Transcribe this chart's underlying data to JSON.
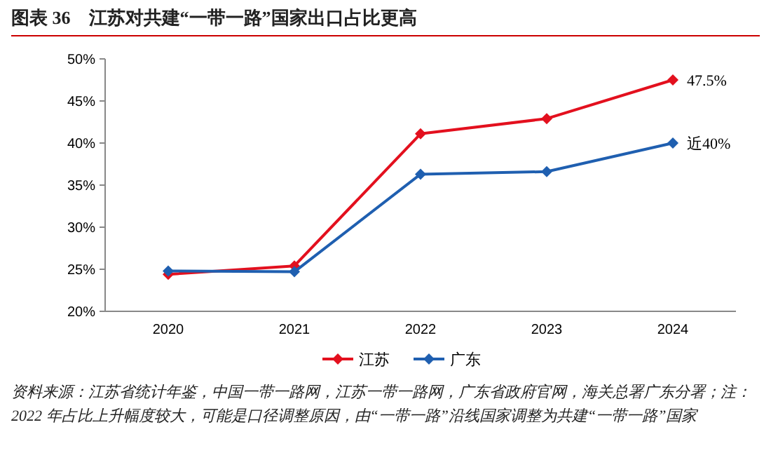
{
  "chart_data": {
    "type": "line",
    "title": "图表 36　江苏对共建“一带一路”国家出口占比更高",
    "categories": [
      "2020",
      "2021",
      "2022",
      "2023",
      "2024"
    ],
    "series": [
      {
        "name": "江苏",
        "color": "#e3101e",
        "values": [
          24.4,
          25.4,
          41.1,
          42.9,
          47.5
        ],
        "value_labels": [
          null,
          null,
          null,
          null,
          "47.5%"
        ]
      },
      {
        "name": "广东",
        "color": "#1f5fb0",
        "values": [
          24.8,
          24.7,
          36.3,
          36.6,
          40.0
        ],
        "value_labels": [
          null,
          null,
          null,
          null,
          "近40%"
        ]
      }
    ],
    "ylim": [
      20,
      50
    ],
    "yticks": [
      {
        "value": 20,
        "label": "20%"
      },
      {
        "value": 25,
        "label": "25%"
      },
      {
        "value": 30,
        "label": "30%"
      },
      {
        "value": 35,
        "label": "35%"
      },
      {
        "value": 40,
        "label": "40%"
      },
      {
        "value": 45,
        "label": "45%"
      },
      {
        "value": 50,
        "label": "50%"
      }
    ],
    "marker": "diamond",
    "grid": false,
    "legend": "bottom",
    "annotations": [
      "资料来源：江苏省统计年鉴，中国一带一路网，江苏一带一路网，广东省政府官网，海关总署广东分署；注：2022 年占比上升幅度较大，可能是口径调整原因，由“一带一路”沿线国家调整为共建“一带一路”国家"
    ]
  }
}
